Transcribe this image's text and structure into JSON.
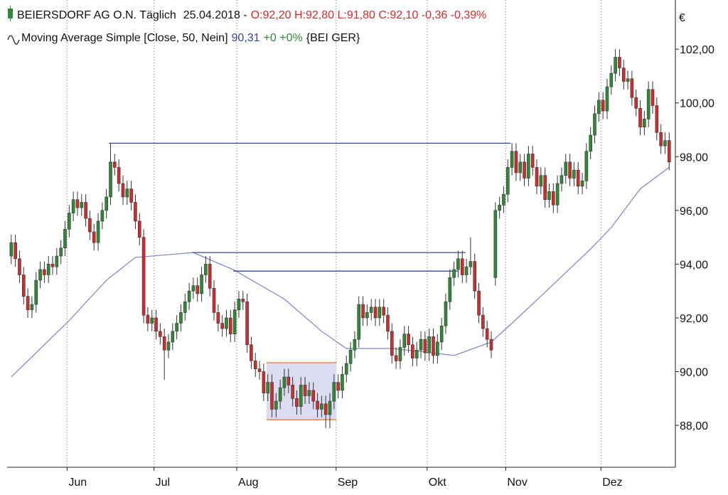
{
  "chart_data": {
    "type": "candlestick",
    "title": "BEIERSDORF AG O.N. Täglich",
    "date": "25.04.2018 -",
    "quote": "O:92,20 H:92,80 L:91,80 C:92,10 -0,36 -0,39%",
    "indicator": "Moving Average Simple [Close, 50, Nein]",
    "indicator_value": "90,31",
    "indicator_change": "+0 +0%",
    "symbol": "{BEI GER}",
    "unit": "€",
    "up_color": "#2f8a34",
    "down_color": "#d42a2a",
    "xlim": [
      -1,
      160.5
    ],
    "xticks": [
      {
        "value": 13.5,
        "label": "Jun"
      },
      {
        "value": 34.5,
        "label": "Jul"
      },
      {
        "value": 54.5,
        "label": "Aug"
      },
      {
        "value": 78.5,
        "label": "Sep"
      },
      {
        "value": 100.5,
        "label": "Okt"
      },
      {
        "value": 119.5,
        "label": "Nov"
      },
      {
        "value": 142.5,
        "label": "Dez"
      }
    ],
    "ylim": [
      86.44,
      103.83
    ],
    "yticks": [
      {
        "value": 88,
        "label": "88,00"
      },
      {
        "value": 90,
        "label": "90,00"
      },
      {
        "value": 92,
        "label": "92,00"
      },
      {
        "value": 94,
        "label": "94,00"
      },
      {
        "value": 96,
        "label": "96,00"
      },
      {
        "value": 98,
        "label": "98,00"
      },
      {
        "value": 100,
        "label": "100,00"
      },
      {
        "value": 102,
        "label": "102,00"
      }
    ],
    "grid": true,
    "open": [
      94.3,
      94.8,
      94.2,
      93.6,
      92.8,
      92.3,
      92.5,
      93.4,
      93.8,
      93.6,
      94.0,
      93.9,
      94.3,
      94.6,
      95.3,
      95.9,
      96.4,
      96.1,
      96.3,
      95.7,
      95.2,
      94.8,
      95.6,
      96.0,
      96.5,
      97.8,
      97.6,
      97.0,
      96.5,
      96.8,
      96.3,
      95.6,
      95.0,
      92.1,
      91.8,
      92.0,
      91.5,
      91.3,
      90.8,
      91.1,
      91.5,
      91.8,
      92.2,
      92.6,
      93.0,
      93.2,
      92.9,
      93.6,
      94.0,
      93.1,
      92.2,
      91.8,
      91.6,
      92.0,
      91.4,
      92.3,
      92.7,
      92.6,
      91.0,
      90.4,
      90.1,
      90.0,
      89.2,
      89.6,
      88.6,
      88.9,
      89.4,
      89.8,
      89.5,
      89.0,
      88.7,
      89.5,
      89.1,
      89.3,
      88.9,
      88.6,
      88.8,
      88.4,
      88.9,
      89.6,
      89.3,
      89.9,
      90.3,
      90.8,
      91.2,
      92.5,
      92.0,
      92.2,
      92.4,
      92.0,
      92.4,
      92.1,
      91.5,
      90.6,
      90.4,
      90.9,
      91.4,
      91.0,
      90.5,
      90.8,
      91.2,
      90.7,
      91.3,
      90.6,
      91.1,
      91.7,
      92.6,
      93.5,
      93.8,
      94.2,
      93.6,
      93.9,
      94.1,
      93.0,
      92.1,
      91.6,
      91.2,
      93.5,
      96.0,
      96.2,
      96.6,
      97.6,
      98.2,
      97.4,
      97.8,
      97.2,
      98.1,
      97.6,
      96.9,
      97.3,
      96.4,
      96.7,
      96.2,
      97.0,
      97.3,
      97.8,
      97.2,
      97.5,
      96.9,
      97.1,
      98.2,
      98.8,
      99.6,
      100.1,
      99.7,
      100.6,
      101.1,
      101.7,
      101.3,
      100.8,
      100.9,
      100.2,
      99.8,
      99.1,
      99.4,
      100.5,
      99.9,
      98.9,
      98.4,
      98.6
    ],
    "high": [
      95.1,
      95.1,
      94.5,
      93.9,
      93.1,
      92.8,
      93.7,
      94.1,
      94.1,
      94.3,
      94.3,
      94.6,
      94.9,
      95.6,
      96.2,
      96.7,
      96.7,
      96.6,
      96.6,
      96.0,
      95.5,
      95.9,
      96.3,
      96.8,
      98.5,
      98.1,
      97.9,
      97.3,
      97.1,
      97.1,
      96.6,
      95.9,
      95.3,
      92.4,
      92.3,
      92.3,
      91.8,
      91.6,
      91.4,
      91.8,
      92.1,
      92.5,
      92.9,
      93.3,
      93.5,
      93.5,
      93.9,
      94.3,
      94.3,
      93.4,
      92.5,
      92.1,
      92.3,
      92.3,
      92.6,
      93.0,
      93.0,
      92.9,
      91.3,
      90.7,
      90.4,
      90.3,
      89.9,
      89.9,
      89.2,
      89.7,
      90.1,
      90.1,
      89.8,
      89.3,
      89.8,
      89.8,
      89.6,
      89.6,
      89.2,
      89.1,
      89.1,
      89.2,
      89.9,
      89.9,
      90.2,
      90.6,
      91.1,
      91.5,
      92.8,
      92.8,
      92.5,
      92.7,
      92.7,
      92.7,
      92.7,
      92.4,
      91.8,
      90.9,
      91.2,
      91.7,
      91.7,
      91.3,
      91.1,
      91.5,
      91.5,
      91.6,
      91.6,
      91.4,
      92.0,
      92.9,
      93.8,
      94.1,
      94.5,
      94.5,
      94.2,
      95.0,
      94.4,
      93.3,
      92.4,
      91.9,
      91.5,
      96.3,
      96.5,
      96.9,
      97.9,
      98.5,
      98.5,
      98.1,
      98.1,
      98.4,
      98.4,
      97.9,
      97.6,
      97.6,
      97.0,
      97.0,
      97.3,
      97.6,
      98.1,
      98.1,
      97.8,
      97.8,
      97.4,
      98.5,
      99.1,
      99.9,
      100.4,
      100.4,
      100.9,
      101.4,
      102.0,
      102.0,
      101.6,
      101.2,
      101.2,
      100.5,
      100.1,
      99.7,
      100.8,
      100.8,
      100.2,
      99.2,
      98.9,
      98.9
    ],
    "low": [
      94.0,
      93.9,
      93.3,
      92.5,
      92.0,
      92.0,
      92.2,
      93.1,
      93.3,
      93.3,
      93.6,
      93.6,
      94.0,
      94.3,
      95.0,
      95.6,
      95.8,
      95.8,
      95.4,
      94.9,
      94.5,
      94.5,
      95.3,
      95.7,
      96.2,
      97.3,
      96.7,
      96.2,
      96.2,
      96.0,
      95.3,
      94.7,
      91.8,
      91.5,
      91.5,
      91.2,
      91.0,
      89.7,
      90.5,
      90.8,
      91.2,
      91.5,
      91.9,
      92.3,
      92.7,
      92.6,
      92.6,
      93.3,
      92.8,
      91.9,
      91.5,
      91.3,
      91.3,
      91.1,
      91.1,
      92.0,
      92.3,
      90.7,
      90.1,
      89.8,
      89.7,
      88.9,
      88.9,
      88.3,
      88.3,
      88.6,
      89.1,
      89.2,
      88.7,
      88.4,
      88.4,
      88.8,
      88.8,
      88.6,
      88.3,
      88.3,
      87.9,
      87.9,
      88.6,
      89.0,
      89.0,
      89.6,
      90.0,
      90.5,
      90.9,
      91.7,
      91.7,
      91.9,
      91.7,
      91.7,
      91.8,
      91.2,
      90.3,
      90.1,
      90.1,
      90.6,
      90.7,
      90.2,
      90.2,
      90.5,
      90.4,
      90.4,
      90.3,
      90.3,
      90.8,
      91.4,
      92.3,
      93.2,
      93.5,
      93.3,
      93.3,
      93.6,
      92.7,
      91.8,
      91.3,
      90.9,
      90.5,
      93.2,
      95.7,
      95.9,
      96.3,
      97.3,
      97.1,
      97.1,
      96.9,
      96.9,
      97.3,
      96.6,
      96.6,
      96.1,
      96.1,
      95.9,
      95.9,
      96.7,
      97.0,
      96.9,
      96.9,
      96.6,
      96.6,
      96.8,
      97.9,
      98.5,
      99.3,
      99.4,
      99.4,
      100.3,
      100.8,
      101.0,
      100.5,
      100.5,
      99.9,
      99.5,
      98.8,
      98.8,
      99.1,
      99.6,
      98.6,
      98.1,
      98.1,
      97.5
    ],
    "close": [
      94.8,
      94.2,
      93.6,
      92.8,
      92.3,
      92.5,
      93.4,
      93.8,
      93.6,
      94.0,
      93.9,
      94.3,
      94.6,
      95.3,
      95.9,
      96.4,
      96.1,
      96.3,
      95.7,
      95.2,
      94.8,
      95.6,
      96.0,
      96.5,
      97.8,
      97.6,
      97.0,
      96.5,
      96.8,
      96.3,
      95.6,
      95.0,
      92.1,
      91.8,
      92.0,
      91.5,
      91.3,
      90.8,
      91.1,
      91.5,
      91.8,
      92.2,
      92.6,
      93.0,
      93.2,
      92.9,
      93.6,
      94.0,
      93.1,
      92.2,
      91.8,
      91.6,
      92.0,
      91.4,
      92.3,
      92.7,
      92.6,
      91.0,
      90.4,
      90.1,
      90.0,
      89.2,
      89.6,
      88.6,
      88.9,
      89.4,
      89.8,
      89.5,
      89.0,
      88.7,
      89.5,
      89.1,
      89.3,
      88.9,
      88.6,
      88.8,
      88.4,
      88.9,
      89.6,
      89.3,
      89.9,
      90.3,
      90.8,
      91.2,
      92.5,
      92.0,
      92.2,
      92.4,
      92.0,
      92.4,
      92.1,
      91.5,
      90.6,
      90.4,
      90.9,
      91.4,
      91.0,
      90.5,
      90.8,
      91.2,
      90.7,
      91.3,
      90.6,
      91.1,
      91.7,
      92.6,
      93.5,
      93.8,
      94.2,
      93.6,
      93.9,
      94.1,
      93.0,
      92.1,
      91.6,
      91.2,
      90.8,
      96.0,
      96.2,
      96.6,
      97.6,
      98.2,
      97.4,
      97.8,
      97.2,
      98.1,
      97.6,
      96.9,
      97.3,
      96.4,
      96.7,
      96.2,
      97.0,
      97.3,
      97.8,
      97.2,
      97.5,
      96.9,
      97.1,
      98.2,
      98.8,
      99.6,
      100.1,
      99.7,
      100.6,
      101.1,
      101.7,
      101.3,
      100.8,
      100.9,
      100.2,
      99.8,
      99.1,
      99.4,
      100.5,
      99.9,
      98.9,
      98.4,
      98.6,
      97.8
    ],
    "ma": {
      "color": "#7d84c6",
      "x": [
        0,
        14,
        23,
        30,
        44,
        54,
        66,
        75,
        81,
        92,
        100,
        107,
        116,
        121,
        130,
        140,
        145,
        152,
        159
      ],
      "values": [
        89.8,
        91.9,
        93.4,
        94.25,
        94.43,
        93.77,
        92.7,
        91.5,
        90.86,
        90.86,
        90.73,
        90.6,
        91.1,
        91.8,
        93.1,
        94.56,
        95.36,
        96.8,
        97.6
      ]
    },
    "lines": [
      {
        "color": "#3446a2",
        "y": 98.5,
        "x": [
          23.6,
          120.7
        ]
      },
      {
        "color": "#3446a2",
        "y": 94.43,
        "x": [
          43.7,
          109.8
        ]
      },
      {
        "color": "#3446a2",
        "y": 93.74,
        "x": [
          53.7,
          108
        ]
      }
    ],
    "box": {
      "color": "#f0844a",
      "fill": "#dcdcf0",
      "x": [
        61.7,
        78.6
      ],
      "y": [
        88.21,
        90.33
      ]
    }
  }
}
